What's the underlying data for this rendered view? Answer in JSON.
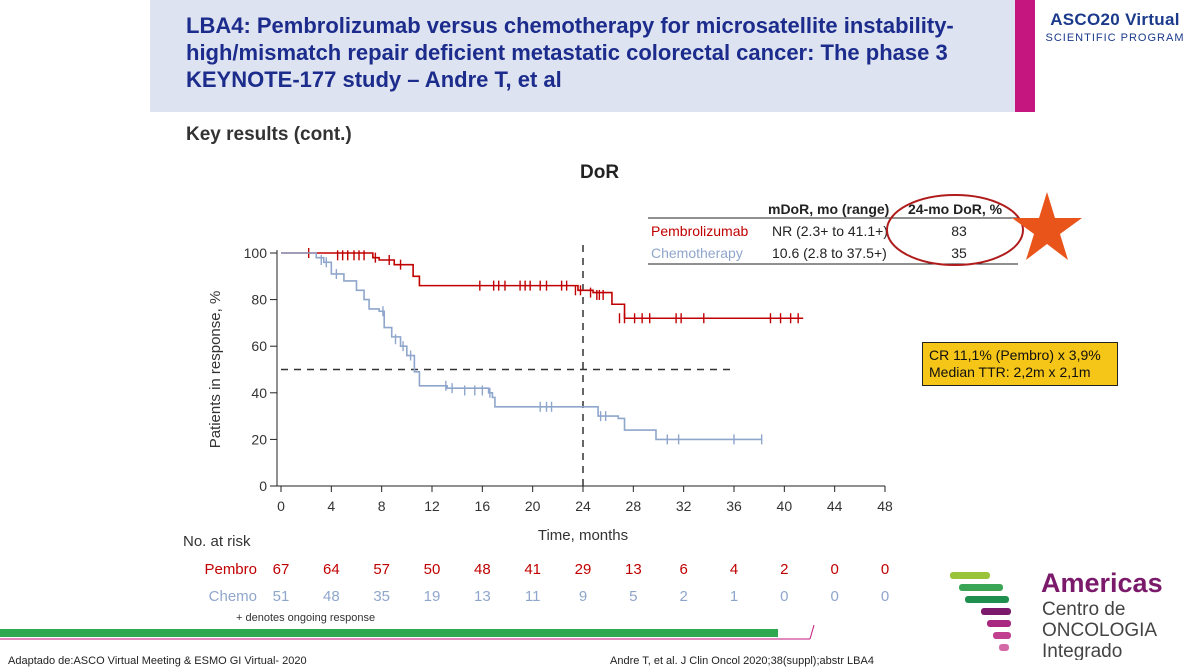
{
  "header": {
    "title": "LBA4: Pembrolizumab versus chemotherapy for microsatellite instability-high/mismatch repair deficient metastatic colorectal cancer: The phase 3 KEYNOTE-177 study – Andre T, et al",
    "brand_line1": "ASCO20 Virtual",
    "brand_line2": "SCIENTIFIC PROGRAM",
    "band_color": "#dde3f0",
    "accent_color": "#c4167e",
    "title_color": "#1c2c8c"
  },
  "subtitle": "Key results (cont.)",
  "summary_table": {
    "headers": [
      "mDoR, mo (range)",
      "24-mo DoR, %"
    ],
    "rows": [
      {
        "arm": "Pembrolizumab",
        "mdor": "NR (2.3+ to 41.1+)",
        "dor24": "83",
        "color": "#c00000"
      },
      {
        "arm": "Chemotherapy",
        "mdor": "10.6 (2.8 to 37.5+)",
        "dor24": "35",
        "color": "#8fa6cc"
      }
    ]
  },
  "highlight": {
    "line1": "CR 11,1% (Pembro) x 3,9%",
    "line2": "Median TTR: 2,2m x 2,1m",
    "color": "#f5c518"
  },
  "chart_data": {
    "type": "line",
    "title": "DoR",
    "xlabel": "Time, months",
    "ylabel": "Patients in response, %",
    "xlim": [
      0,
      48
    ],
    "ylim": [
      0,
      100
    ],
    "x_ticks": [
      0,
      4,
      8,
      12,
      16,
      20,
      24,
      28,
      32,
      36,
      40,
      44,
      48
    ],
    "y_ticks": [
      0,
      20,
      40,
      60,
      80,
      100
    ],
    "reference_lines": {
      "y": 50,
      "x": 24
    },
    "series": [
      {
        "name": "Pembrolizumab",
        "color": "#c00000",
        "steps": [
          [
            0,
            100
          ],
          [
            4.4,
            100
          ],
          [
            7.3,
            98
          ],
          [
            7.8,
            97
          ],
          [
            9,
            95
          ],
          [
            10.5,
            90
          ],
          [
            11,
            86
          ],
          [
            23.3,
            86
          ],
          [
            23.6,
            84
          ],
          [
            24.8,
            83
          ],
          [
            26.3,
            78
          ],
          [
            27.3,
            72
          ],
          [
            41.5,
            72
          ]
        ],
        "censors": [
          [
            2.2,
            100
          ],
          [
            4.5,
            99
          ],
          [
            4.9,
            99
          ],
          [
            5.3,
            99
          ],
          [
            5.8,
            99
          ],
          [
            6.2,
            99
          ],
          [
            6.6,
            99
          ],
          [
            7.5,
            98
          ],
          [
            8.6,
            97
          ],
          [
            9.5,
            95
          ],
          [
            15.8,
            86
          ],
          [
            16.9,
            86
          ],
          [
            17.3,
            86
          ],
          [
            17.8,
            86
          ],
          [
            19,
            86
          ],
          [
            19.4,
            86
          ],
          [
            19.8,
            86
          ],
          [
            20.6,
            86
          ],
          [
            21.1,
            86
          ],
          [
            22.3,
            86
          ],
          [
            22.7,
            86
          ],
          [
            23.4,
            84
          ],
          [
            23.8,
            84
          ],
          [
            24.6,
            83
          ],
          [
            25.1,
            82
          ],
          [
            25.3,
            82
          ],
          [
            25.6,
            82
          ],
          [
            26.9,
            72
          ],
          [
            27.3,
            72
          ],
          [
            28.1,
            72
          ],
          [
            28.7,
            72
          ],
          [
            29.3,
            72
          ],
          [
            31.4,
            72
          ],
          [
            31.8,
            72
          ],
          [
            33.6,
            72
          ],
          [
            38.9,
            72
          ],
          [
            39.7,
            72
          ],
          [
            40.5,
            72
          ],
          [
            41.1,
            72
          ]
        ]
      },
      {
        "name": "Chemotherapy",
        "color": "#8fa6cc",
        "steps": [
          [
            0,
            100
          ],
          [
            2.8,
            98
          ],
          [
            3.4,
            96
          ],
          [
            4,
            91
          ],
          [
            5,
            88
          ],
          [
            6,
            84
          ],
          [
            6.6,
            80
          ],
          [
            7,
            76
          ],
          [
            7.8,
            75
          ],
          [
            8.2,
            68
          ],
          [
            8.8,
            64
          ],
          [
            9.5,
            60
          ],
          [
            10,
            56
          ],
          [
            10.6,
            49
          ],
          [
            11,
            43
          ],
          [
            13.2,
            42
          ],
          [
            16.5,
            40
          ],
          [
            16.8,
            38
          ],
          [
            17,
            34
          ],
          [
            25,
            34
          ],
          [
            25.2,
            30
          ],
          [
            26.8,
            29
          ],
          [
            27.3,
            24
          ],
          [
            29.8,
            20
          ],
          [
            38.2,
            20
          ]
        ],
        "censors": [
          [
            3.2,
            97
          ],
          [
            3.6,
            96
          ],
          [
            4.4,
            91
          ],
          [
            8.1,
            75
          ],
          [
            9.1,
            63
          ],
          [
            9.7,
            60
          ],
          [
            10.3,
            56
          ],
          [
            13.1,
            43
          ],
          [
            13.6,
            42
          ],
          [
            14.6,
            41
          ],
          [
            15.4,
            41
          ],
          [
            16,
            41
          ],
          [
            16.6,
            40
          ],
          [
            20.6,
            34
          ],
          [
            21.1,
            34
          ],
          [
            21.5,
            34
          ],
          [
            25.4,
            30
          ],
          [
            25.8,
            30
          ],
          [
            30.7,
            20
          ],
          [
            31.6,
            20
          ],
          [
            36,
            20
          ],
          [
            38.2,
            20
          ]
        ]
      }
    ],
    "risk_table": {
      "title": "No. at risk",
      "columns": [
        0,
        4,
        8,
        12,
        16,
        20,
        24,
        28,
        32,
        36,
        40,
        44,
        48
      ],
      "rows": [
        {
          "label": "Pembro",
          "color": "#c00000",
          "values": [
            "67",
            "64",
            "57",
            "50",
            "48",
            "41",
            "29",
            "13",
            "6",
            "4",
            "2",
            "0",
            "0"
          ]
        },
        {
          "label": "Chemo",
          "color": "#8fa6cc",
          "values": [
            "51",
            "48",
            "35",
            "19",
            "13",
            "11",
            "9",
            "5",
            "2",
            "1",
            "0",
            "0",
            "0"
          ]
        }
      ]
    },
    "footnote": "+ denotes ongoing response"
  },
  "footer": {
    "left": "Adaptado de:ASCO Virtual Meeting & ESMO GI Virtual- 2020",
    "right": "Andre T, et al. J Clin Oncol 2020;38(suppl);abstr LBA4"
  },
  "logo": {
    "line1": "Americas",
    "line2": "Centro de",
    "line3": "ONCOLOGIA",
    "line4": "Integrado",
    "color": "#7b1a6a"
  }
}
